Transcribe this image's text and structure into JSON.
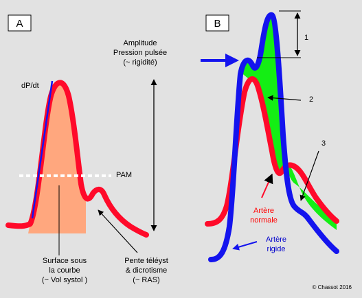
{
  "panel_a": {
    "label": "A",
    "dpdt_label": "dP/dt",
    "amplitude_lines": [
      "Amplitude",
      "Pression pulsée",
      "(~ rigidité)"
    ],
    "pam_label": "PAM",
    "surface_lines": [
      "Surface sous",
      "la courbe",
      "(~ Vol systol )"
    ],
    "slope_lines": [
      "Pente téléyst",
      "& dicrotisme",
      "(~ RAS)"
    ]
  },
  "panel_b": {
    "label": "B",
    "marker_1": "1",
    "marker_2": "2",
    "marker_3": "3",
    "normal_lines": [
      "Artère",
      "normale"
    ],
    "rigid_lines": [
      "Artère",
      "rigide"
    ]
  },
  "copyright": "© Chassot 2016",
  "colors": {
    "background": "#e2e2e2",
    "curve_red": "#ff0a2a",
    "curve_blue": "#1414ee",
    "fill_area": "#ffa77e",
    "fill_green": "#14ee14",
    "normal_text": "#ff0000",
    "rigid_text": "#0000cc"
  }
}
